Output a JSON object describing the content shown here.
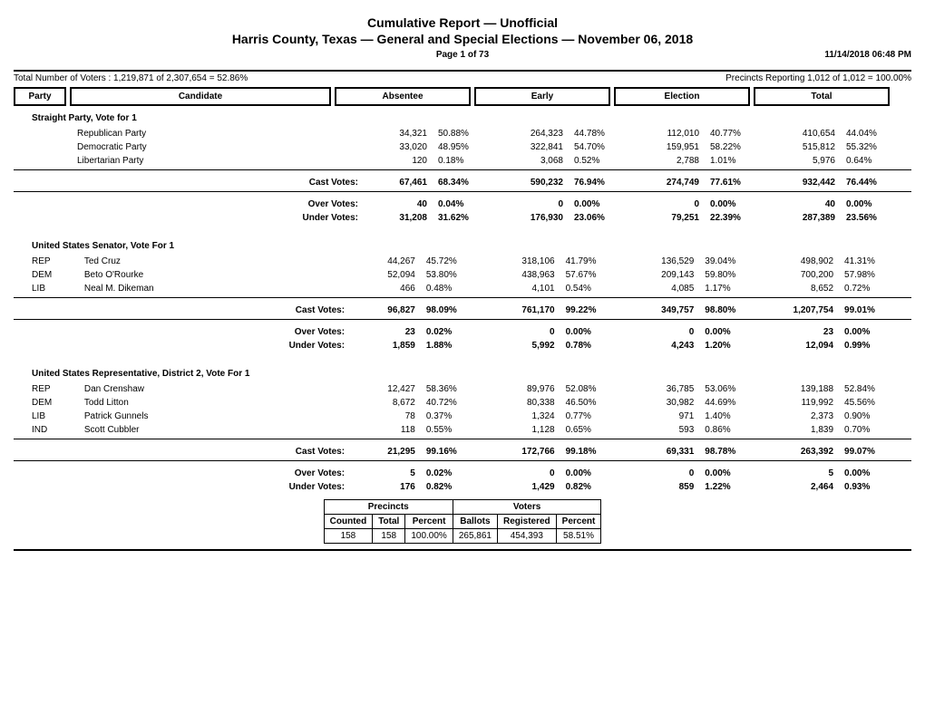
{
  "header": {
    "title1": "Cumulative Report  —  Unofficial",
    "title2": "Harris County, Texas  —  General and Special Elections  —  November 06, 2018",
    "page": "Page 1 of 73",
    "timestamp": "11/14/2018 06:48 PM",
    "voters_line": "Total Number of Voters : 1,219,871 of 2,307,654 = 52.86%",
    "precincts_line": "Precincts Reporting 1,012 of 1,012 = 100.00%",
    "cols": {
      "party": "Party",
      "candidate": "Candidate",
      "absentee": "Absentee",
      "early": "Early",
      "election": "Election",
      "total": "Total"
    }
  },
  "labels": {
    "cast": "Cast Votes:",
    "over": "Over Votes:",
    "under": "Under Votes:"
  },
  "races": [
    {
      "title": "Straight Party, Vote for 1",
      "indent_candidates": true,
      "candidates": [
        {
          "party": "",
          "name": "Republican Party",
          "abs_n": "34,321",
          "abs_p": "50.88%",
          "ear_n": "264,323",
          "ear_p": "44.78%",
          "ele_n": "112,010",
          "ele_p": "40.77%",
          "tot_n": "410,654",
          "tot_p": "44.04%"
        },
        {
          "party": "",
          "name": "Democratic Party",
          "abs_n": "33,020",
          "abs_p": "48.95%",
          "ear_n": "322,841",
          "ear_p": "54.70%",
          "ele_n": "159,951",
          "ele_p": "58.22%",
          "tot_n": "515,812",
          "tot_p": "55.32%"
        },
        {
          "party": "",
          "name": "Libertarian Party",
          "abs_n": "120",
          "abs_p": "0.18%",
          "ear_n": "3,068",
          "ear_p": "0.52%",
          "ele_n": "2,788",
          "ele_p": "1.01%",
          "tot_n": "5,976",
          "tot_p": "0.64%"
        }
      ],
      "cast": {
        "abs_n": "67,461",
        "abs_p": "68.34%",
        "ear_n": "590,232",
        "ear_p": "76.94%",
        "ele_n": "274,749",
        "ele_p": "77.61%",
        "tot_n": "932,442",
        "tot_p": "76.44%"
      },
      "over": {
        "abs_n": "40",
        "abs_p": "0.04%",
        "ear_n": "0",
        "ear_p": "0.00%",
        "ele_n": "0",
        "ele_p": "0.00%",
        "tot_n": "40",
        "tot_p": "0.00%"
      },
      "under": {
        "abs_n": "31,208",
        "abs_p": "31.62%",
        "ear_n": "176,930",
        "ear_p": "23.06%",
        "ele_n": "79,251",
        "ele_p": "22.39%",
        "tot_n": "287,389",
        "tot_p": "23.56%"
      }
    },
    {
      "title": "United States Senator, Vote For 1",
      "candidates": [
        {
          "party": "REP",
          "name": "Ted Cruz",
          "abs_n": "44,267",
          "abs_p": "45.72%",
          "ear_n": "318,106",
          "ear_p": "41.79%",
          "ele_n": "136,529",
          "ele_p": "39.04%",
          "tot_n": "498,902",
          "tot_p": "41.31%"
        },
        {
          "party": "DEM",
          "name": "Beto O'Rourke",
          "abs_n": "52,094",
          "abs_p": "53.80%",
          "ear_n": "438,963",
          "ear_p": "57.67%",
          "ele_n": "209,143",
          "ele_p": "59.80%",
          "tot_n": "700,200",
          "tot_p": "57.98%"
        },
        {
          "party": "LIB",
          "name": "Neal M. Dikeman",
          "abs_n": "466",
          "abs_p": "0.48%",
          "ear_n": "4,101",
          "ear_p": "0.54%",
          "ele_n": "4,085",
          "ele_p": "1.17%",
          "tot_n": "8,652",
          "tot_p": "0.72%"
        }
      ],
      "cast": {
        "abs_n": "96,827",
        "abs_p": "98.09%",
        "ear_n": "761,170",
        "ear_p": "99.22%",
        "ele_n": "349,757",
        "ele_p": "98.80%",
        "tot_n": "1,207,754",
        "tot_p": "99.01%"
      },
      "over": {
        "abs_n": "23",
        "abs_p": "0.02%",
        "ear_n": "0",
        "ear_p": "0.00%",
        "ele_n": "0",
        "ele_p": "0.00%",
        "tot_n": "23",
        "tot_p": "0.00%"
      },
      "under": {
        "abs_n": "1,859",
        "abs_p": "1.88%",
        "ear_n": "5,992",
        "ear_p": "0.78%",
        "ele_n": "4,243",
        "ele_p": "1.20%",
        "tot_n": "12,094",
        "tot_p": "0.99%"
      }
    },
    {
      "title": "United States Representative, District 2, Vote For 1",
      "candidates": [
        {
          "party": "REP",
          "name": "Dan Crenshaw",
          "abs_n": "12,427",
          "abs_p": "58.36%",
          "ear_n": "89,976",
          "ear_p": "52.08%",
          "ele_n": "36,785",
          "ele_p": "53.06%",
          "tot_n": "139,188",
          "tot_p": "52.84%"
        },
        {
          "party": "DEM",
          "name": "Todd Litton",
          "abs_n": "8,672",
          "abs_p": "40.72%",
          "ear_n": "80,338",
          "ear_p": "46.50%",
          "ele_n": "30,982",
          "ele_p": "44.69%",
          "tot_n": "119,992",
          "tot_p": "45.56%"
        },
        {
          "party": "LIB",
          "name": "Patrick Gunnels",
          "abs_n": "78",
          "abs_p": "0.37%",
          "ear_n": "1,324",
          "ear_p": "0.77%",
          "ele_n": "971",
          "ele_p": "1.40%",
          "tot_n": "2,373",
          "tot_p": "0.90%"
        },
        {
          "party": "IND",
          "name": "Scott Cubbler",
          "abs_n": "118",
          "abs_p": "0.55%",
          "ear_n": "1,128",
          "ear_p": "0.65%",
          "ele_n": "593",
          "ele_p": "0.86%",
          "tot_n": "1,839",
          "tot_p": "0.70%"
        }
      ],
      "cast": {
        "abs_n": "21,295",
        "abs_p": "99.16%",
        "ear_n": "172,766",
        "ear_p": "99.18%",
        "ele_n": "69,331",
        "ele_p": "98.78%",
        "tot_n": "263,392",
        "tot_p": "99.07%"
      },
      "over": {
        "abs_n": "5",
        "abs_p": "0.02%",
        "ear_n": "0",
        "ear_p": "0.00%",
        "ele_n": "0",
        "ele_p": "0.00%",
        "tot_n": "5",
        "tot_p": "0.00%"
      },
      "under": {
        "abs_n": "176",
        "abs_p": "0.82%",
        "ear_n": "1,429",
        "ear_p": "0.82%",
        "ele_n": "859",
        "ele_p": "1.22%",
        "tot_n": "2,464",
        "tot_p": "0.93%"
      },
      "summary_table": {
        "head_top": {
          "precincts": "Precincts",
          "voters": "Voters"
        },
        "head": {
          "counted": "Counted",
          "total": "Total",
          "percent": "Percent",
          "ballots": "Ballots",
          "registered": "Registered",
          "percent2": "Percent"
        },
        "row": {
          "counted": "158",
          "total": "158",
          "percent": "100.00%",
          "ballots": "265,861",
          "registered": "454,393",
          "percent2": "58.51%"
        }
      }
    }
  ]
}
